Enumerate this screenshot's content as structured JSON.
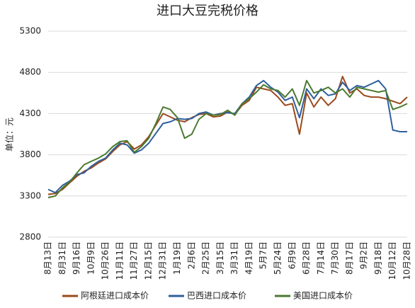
{
  "chart_data": {
    "type": "line",
    "title": "进口大豆完税价格",
    "y_label": "单位：元",
    "categories": [
      "8月13日",
      null,
      "8月31日",
      null,
      "9月16日",
      null,
      "10月9日",
      null,
      "10月26日",
      null,
      "11月11日",
      null,
      "11月27日",
      null,
      "12月15日",
      null,
      "12月31日",
      null,
      "1月19日",
      null,
      "2月6日",
      null,
      "2月25日",
      null,
      "3月15日",
      null,
      "3月31日",
      null,
      "4月19日",
      null,
      "5月7日",
      null,
      "5月24日",
      null,
      "6月9日",
      null,
      "6月28日",
      null,
      "7月14日",
      null,
      "7月30日",
      null,
      "8月17日",
      null,
      "9月2日",
      null,
      "9月18日",
      null,
      "10月12日",
      null,
      "10月28日"
    ],
    "series": [
      {
        "name": "阿根廷进口成本价",
        "color": "#9a4a1c",
        "values": [
          3320,
          3330,
          3380,
          3460,
          3540,
          3600,
          3640,
          3700,
          3750,
          3840,
          3920,
          3960,
          3870,
          3920,
          4020,
          4160,
          4300,
          4260,
          4220,
          4200,
          4250,
          4290,
          4300,
          4260,
          4270,
          4320,
          4290,
          4400,
          4460,
          4620,
          4600,
          4580,
          4500,
          4400,
          4420,
          4050,
          4550,
          4380,
          4500,
          4400,
          4480,
          4750,
          4550,
          4600,
          4520,
          4500,
          4500,
          4480,
          4450,
          4420,
          4500
        ]
      },
      {
        "name": "巴西进口成本价",
        "color": "#2f5f9e",
        "values": [
          3380,
          3340,
          3430,
          3480,
          3560,
          3580,
          3660,
          3720,
          3760,
          3860,
          3940,
          3920,
          3820,
          3860,
          3940,
          4060,
          4180,
          4200,
          4240,
          4230,
          4240,
          4300,
          4320,
          4280,
          4300,
          4310,
          4300,
          4420,
          4500,
          4640,
          4700,
          4620,
          4560,
          4460,
          4500,
          4250,
          4600,
          4480,
          4600,
          4520,
          4540,
          4680,
          4580,
          4640,
          4620,
          4660,
          4700,
          4600,
          4100,
          4080,
          4080
        ]
      },
      {
        "name": "美国进口成本价",
        "color": "#4a7a2e",
        "values": [
          3280,
          3300,
          3400,
          3470,
          3580,
          3680,
          3720,
          3760,
          3810,
          3900,
          3960,
          3970,
          3830,
          3900,
          4000,
          4180,
          4380,
          4350,
          4250,
          4000,
          4050,
          4230,
          4300,
          4280,
          4290,
          4340,
          4280,
          4420,
          4480,
          4560,
          4650,
          4600,
          4580,
          4500,
          4600,
          4400,
          4700,
          4550,
          4580,
          4620,
          4550,
          4600,
          4500,
          4620,
          4600,
          4580,
          4560,
          4580,
          4350,
          4380,
          4420
        ]
      }
    ],
    "ylim": [
      2800,
      5300
    ],
    "yticks": [
      2800,
      3300,
      3800,
      4300,
      4800,
      5300
    ],
    "grid": true
  }
}
